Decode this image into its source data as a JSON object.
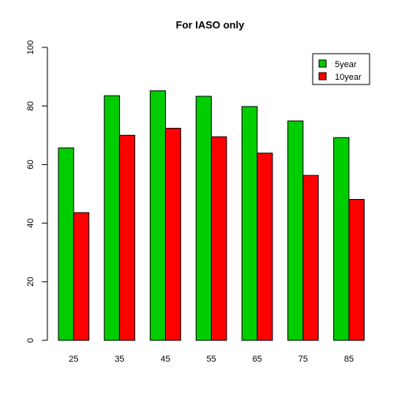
{
  "chart_data": {
    "type": "bar",
    "title": "For IASO only",
    "xlabel": "",
    "ylabel": "",
    "categories": [
      "25",
      "35",
      "45",
      "55",
      "65",
      "75",
      "85"
    ],
    "series": [
      {
        "name": "5year",
        "color": "#00CD00",
        "values": [
          65.7,
          83.5,
          85.2,
          83.3,
          79.8,
          74.9,
          69.2
        ]
      },
      {
        "name": "10year",
        "color": "#FF0000",
        "values": [
          43.6,
          70.0,
          72.4,
          69.5,
          63.9,
          56.3,
          48.1
        ]
      }
    ],
    "ylim": [
      0,
      100
    ],
    "yticks": [
      "0",
      "20",
      "40",
      "60",
      "80",
      "100"
    ],
    "grid": false,
    "legend_position": "top-right"
  }
}
